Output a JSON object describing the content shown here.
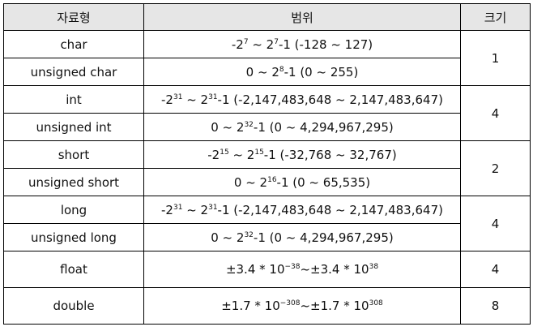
{
  "header": {
    "type": "자료형",
    "range": "범위",
    "size": "크기"
  },
  "rows": [
    {
      "type": "char",
      "range": [
        "-2",
        "7",
        " ~ 2",
        "7",
        "-1 (-128 ~ 127)"
      ]
    },
    {
      "type": "unsigned char",
      "range": [
        "0 ~ 2",
        "8",
        "-1 (0 ~ 255)"
      ]
    },
    {
      "type": "int",
      "range": [
        "-2",
        "31",
        " ~ 2",
        "31",
        "-1 (-2,147,483,648 ~ 2,147,483,647)"
      ]
    },
    {
      "type": "unsigned int",
      "range": [
        "0 ~ 2",
        "32",
        "-1 (0 ~ 4,294,967,295)"
      ]
    },
    {
      "type": "short",
      "range": [
        "-2",
        "15",
        " ~ 2",
        "15",
        "-1 (-32,768 ~ 32,767)"
      ]
    },
    {
      "type": "unsigned short",
      "range": [
        "0 ~ 2",
        "16",
        "-1 (0 ~ 65,535)"
      ]
    },
    {
      "type": "long",
      "range": [
        "-2",
        "31",
        " ~ 2",
        "31",
        "-1 (-2,147,483,648 ~ 2,147,483,647)"
      ]
    },
    {
      "type": "unsigned long",
      "range": [
        "0 ~ 2",
        "32",
        "-1 (0 ~ 4,294,967,295)"
      ]
    },
    {
      "type": "float",
      "range": [
        "±3.4 * 10",
        "−38",
        "~±3.4 * 10",
        "38"
      ]
    },
    {
      "type": "double",
      "range": [
        "±1.7 * 10",
        "−308",
        "~±1.7 * 10",
        "308"
      ]
    }
  ],
  "sizes": [
    "1",
    "4",
    "2",
    "4",
    "4",
    "8"
  ]
}
